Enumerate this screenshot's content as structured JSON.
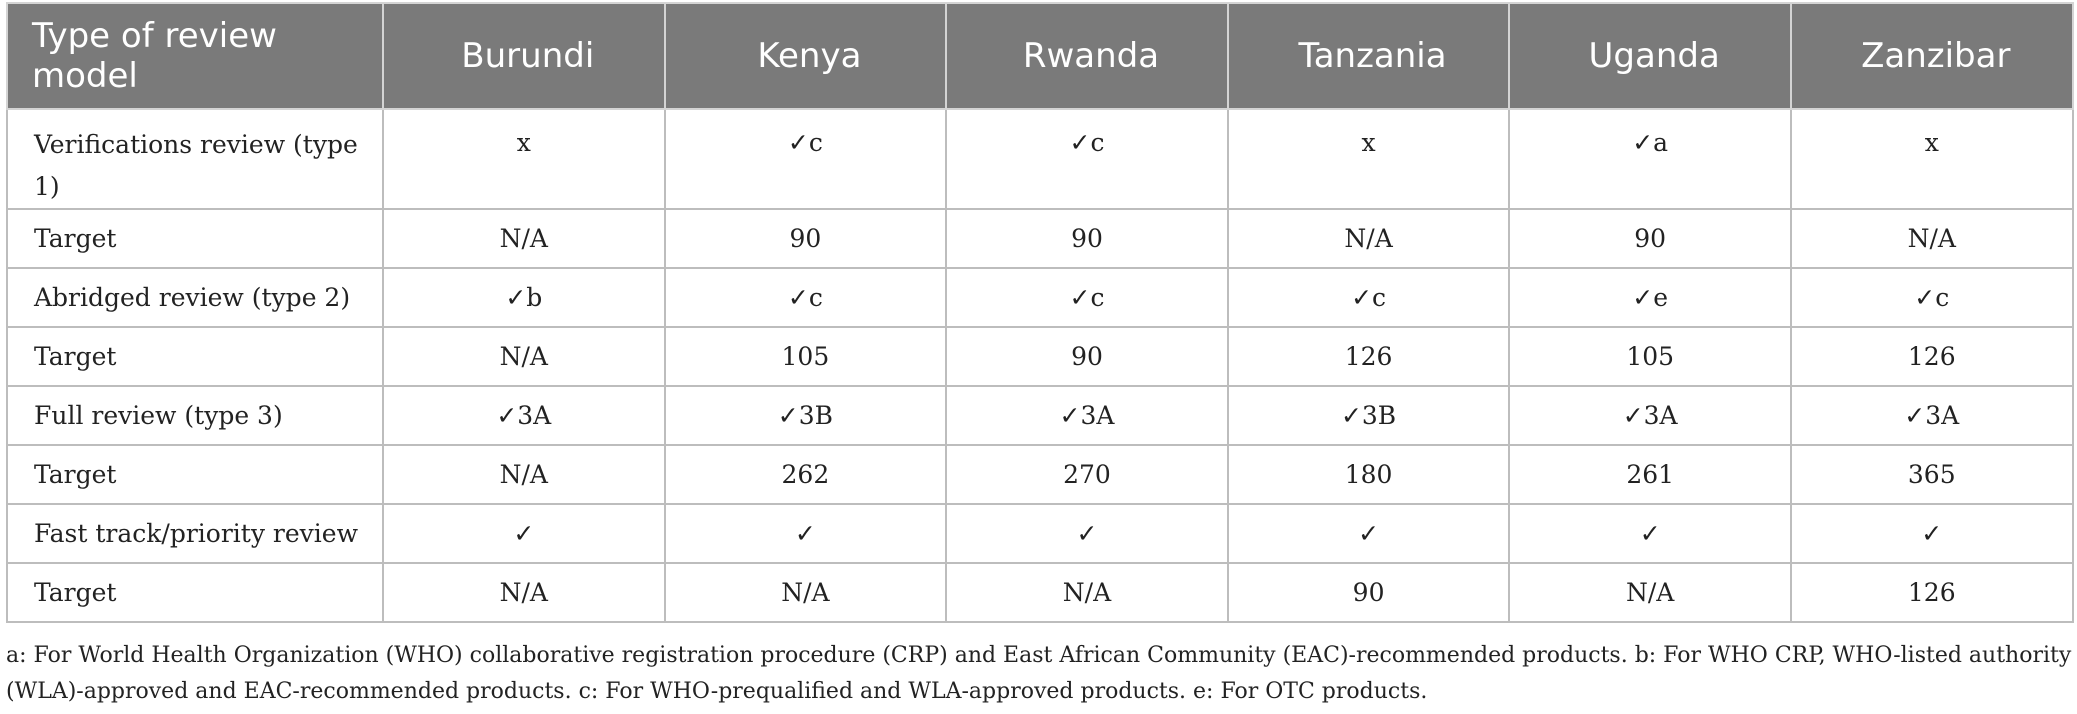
{
  "table": {
    "headers": [
      "Type of review model",
      "Burundi",
      "Kenya",
      "Rwanda",
      "Tanzania",
      "Uganda",
      "Zanzibar"
    ],
    "rows": [
      [
        "Verifications review (type 1)",
        "x",
        "✓c",
        "✓c",
        "x",
        "✓a",
        "x"
      ],
      [
        "Target",
        "N/A",
        "90",
        "90",
        "N/A",
        "90",
        "N/A"
      ],
      [
        "Abridged review (type 2)",
        "✓b",
        "✓c",
        "✓c",
        "✓c",
        "✓e",
        "✓c"
      ],
      [
        "Target",
        "N/A",
        "105",
        "90",
        "126",
        "105",
        "126"
      ],
      [
        "Full review (type 3)",
        "✓3A",
        "✓3B",
        "✓3A",
        "✓3B",
        "✓3A",
        "✓3A"
      ],
      [
        "Target",
        "N/A",
        "262",
        "270",
        "180",
        "261",
        "365"
      ],
      [
        "Fast track/priority review",
        "✓",
        "✓",
        "✓",
        "✓",
        "✓",
        "✓"
      ],
      [
        "Target",
        "N/A",
        "N/A",
        "N/A",
        "90",
        "N/A",
        "126"
      ]
    ]
  },
  "footnote": "a: For World Health Organization (WHO) collaborative registration procedure (CRP) and East African Community (EAC)-recommended products. b: For WHO CRP, WHO-listed authority (WLA)-approved and EAC-recommended products. c: For WHO-prequalified and WLA-approved products. e: For OTC products."
}
